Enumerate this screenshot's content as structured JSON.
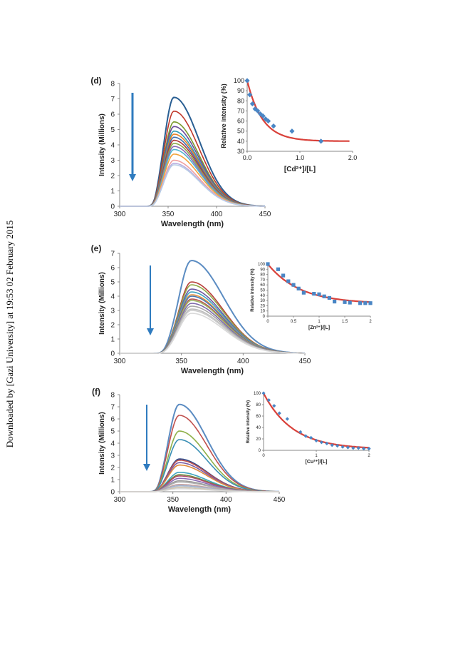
{
  "sidebar_text": "Downloaded by [Gazi University] at 19:53 02 February 2015",
  "chart_data": [
    {
      "panel": "(d)",
      "type": "line",
      "xlabel": "Wavelength (nm)",
      "ylabel": "Intensity (Millions)",
      "xlim": [
        300,
        450
      ],
      "ylim": [
        0,
        8
      ],
      "xticks": [
        300,
        350,
        400,
        450
      ],
      "yticks": [
        0,
        1,
        2,
        3,
        4,
        5,
        6,
        7,
        8
      ],
      "peak_wavelength": 356,
      "peaks": [
        7.1,
        6.2,
        5.5,
        5.2,
        4.9,
        4.7,
        4.5,
        4.3,
        4.1,
        3.9,
        3.7,
        3.4,
        3.0,
        2.8,
        2.7
      ],
      "colors": [
        "#2a5f93",
        "#c0392b",
        "#7a9a2e",
        "#6b4c9a",
        "#2e9bb5",
        "#e67e22",
        "#3f6fb0",
        "#b03a3a",
        "#8aa84a",
        "#8a6bb5",
        "#4fb5cf",
        "#f3a33b",
        "#f0a0a0",
        "#b9aee0",
        "#b8cde6"
      ],
      "arrow": "down",
      "inset": {
        "type": "scatter",
        "xlabel": "[Cd²⁺]/[L]",
        "ylabel": "Relative intensity (%)",
        "xlim": [
          0,
          2
        ],
        "ylim": [
          30,
          100
        ],
        "xticks": [
          "0.0",
          "1.0",
          "2.0"
        ],
        "yticks": [
          30,
          40,
          50,
          60,
          70,
          80,
          90,
          100
        ],
        "points": [
          [
            0,
            100
          ],
          [
            0.05,
            86
          ],
          [
            0.1,
            77
          ],
          [
            0.15,
            72
          ],
          [
            0.2,
            70
          ],
          [
            0.25,
            67
          ],
          [
            0.3,
            65
          ],
          [
            0.35,
            62
          ],
          [
            0.4,
            60
          ],
          [
            0.5,
            55
          ],
          [
            0.85,
            50
          ],
          [
            1.4,
            40
          ]
        ],
        "marker_color": "#4a86c5",
        "fit_color": "#d9413a"
      }
    },
    {
      "panel": "(e)",
      "type": "line",
      "xlabel": "Wavelength (nm)",
      "ylabel": "Intensity (Millions)",
      "xlim": [
        300,
        450
      ],
      "ylim": [
        0,
        7
      ],
      "xticks": [
        300,
        350,
        400,
        450
      ],
      "yticks": [
        0,
        1,
        2,
        3,
        4,
        5,
        6,
        7
      ],
      "peak_wavelength": 358,
      "peaks": [
        6.5,
        5.0,
        4.8,
        4.5,
        4.3,
        4.1,
        4.0,
        3.8,
        3.7,
        3.5,
        3.3,
        3.1,
        3.0,
        2.8
      ],
      "colors": [
        "#5b8cc2",
        "#b8403b",
        "#8fa947",
        "#6e58a0",
        "#3fa4c0",
        "#e5913b",
        "#4a78b3",
        "#b55551",
        "#9fb763",
        "#7f6aac",
        "#a8a8a8",
        "#bdbdbd",
        "#cccccc",
        "#d9d9d9"
      ],
      "arrow": "down",
      "inset": {
        "type": "scatter",
        "xlabel": "[Zn²⁺]/[L]",
        "ylabel": "Relative intensity (%)",
        "xlim": [
          0,
          2
        ],
        "ylim": [
          0,
          100
        ],
        "xticks": [
          "0",
          "0.5",
          "1",
          "1.5",
          "2"
        ],
        "yticks": [
          0,
          10,
          20,
          30,
          40,
          50,
          60,
          70,
          80,
          90,
          100
        ],
        "points": [
          [
            0,
            100
          ],
          [
            0.2,
            90
          ],
          [
            0.3,
            78
          ],
          [
            0.4,
            67
          ],
          [
            0.5,
            60
          ],
          [
            0.6,
            53
          ],
          [
            0.7,
            45
          ],
          [
            0.9,
            43
          ],
          [
            1.0,
            42
          ],
          [
            1.1,
            38
          ],
          [
            1.2,
            35
          ],
          [
            1.3,
            28
          ],
          [
            1.5,
            27
          ],
          [
            1.6,
            26
          ],
          [
            1.8,
            25
          ],
          [
            1.9,
            25
          ],
          [
            2.0,
            25
          ]
        ],
        "marker_color": "#4a86c5",
        "fit_color": "#d9413a"
      }
    },
    {
      "panel": "(f)",
      "type": "line",
      "xlabel": "Wavelength (nm)",
      "ylabel": "Intensity (Millions)",
      "xlim": [
        300,
        450
      ],
      "ylim": [
        0,
        8
      ],
      "xticks": [
        300,
        350,
        400,
        450
      ],
      "yticks": [
        0,
        1,
        2,
        3,
        4,
        5,
        6,
        7,
        8
      ],
      "peak_wavelength": 356,
      "peaks": [
        7.2,
        6.3,
        5.0,
        4.3,
        2.7,
        2.6,
        2.4,
        2.2,
        1.6,
        1.4,
        1.3,
        1.1,
        0.9,
        0.8,
        0.6,
        0.5,
        0.4,
        0.3,
        0.25
      ],
      "colors": [
        "#5b8cc2",
        "#c0504d",
        "#8fb04a",
        "#3a8fb5",
        "#2e4a8a",
        "#c0504d",
        "#7a5ea8",
        "#e08a3b",
        "#3fa4c0",
        "#6b8e3a",
        "#b04a6a",
        "#8a6bb5",
        "#999999",
        "#b0b0b0",
        "#c4a0a0",
        "#a0b4d0",
        "#c8c8c8",
        "#d0c0a0",
        "#d8d8d8"
      ],
      "arrow": "down",
      "inset": {
        "type": "scatter",
        "xlabel": "[Cu²⁺]/[L]",
        "ylabel": "Relative intensity (%)",
        "xlim": [
          0,
          2
        ],
        "ylim": [
          0,
          100
        ],
        "xticks": [
          "0",
          "1",
          "2"
        ],
        "yticks": [
          0,
          20,
          40,
          60,
          80,
          100
        ],
        "points": [
          [
            0,
            100
          ],
          [
            0.1,
            88
          ],
          [
            0.2,
            78
          ],
          [
            0.3,
            65
          ],
          [
            0.45,
            55
          ],
          [
            0.7,
            32
          ],
          [
            0.8,
            25
          ],
          [
            0.9,
            22
          ],
          [
            1.0,
            17
          ],
          [
            1.1,
            14
          ],
          [
            1.2,
            12
          ],
          [
            1.3,
            9
          ],
          [
            1.4,
            8
          ],
          [
            1.5,
            6
          ],
          [
            1.6,
            5
          ],
          [
            1.7,
            4
          ],
          [
            1.8,
            4
          ],
          [
            1.9,
            3
          ],
          [
            2.0,
            3
          ]
        ],
        "marker_color": "#4a86c5",
        "fit_color": "#d9413a"
      }
    }
  ]
}
